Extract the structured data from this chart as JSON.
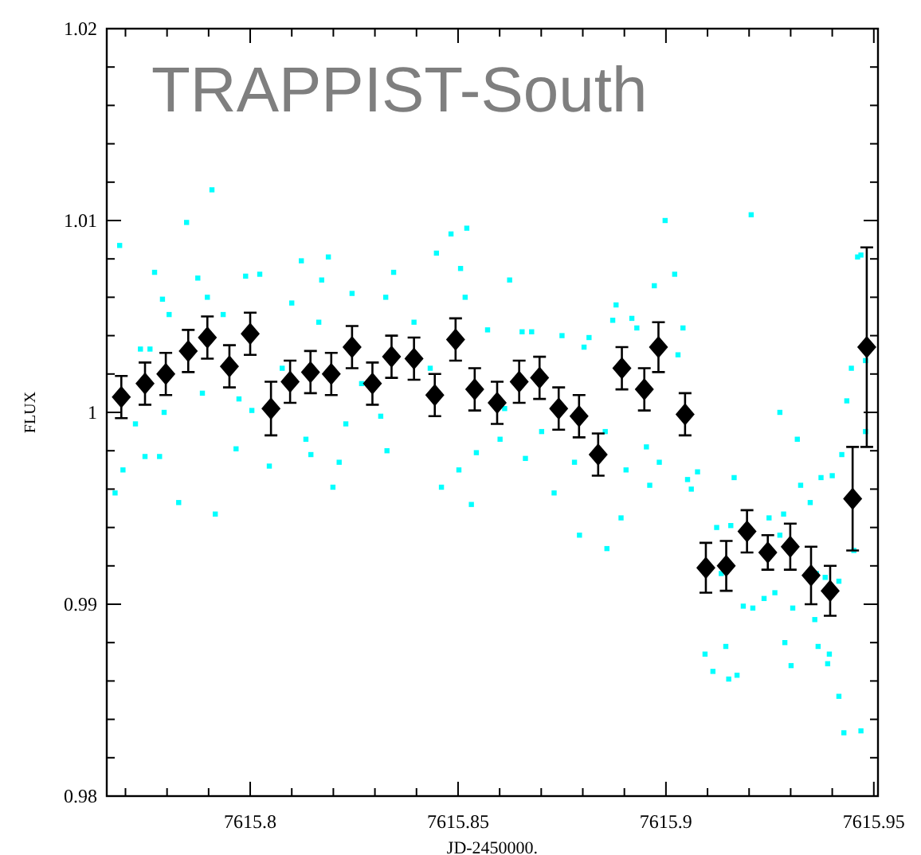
{
  "chart_data": {
    "type": "scatter",
    "title": "TRAPPIST-South",
    "xlabel": "JD-2450000.",
    "ylabel": "FLUX",
    "xlim": [
      7615.7655,
      7615.951
    ],
    "ylim": [
      0.98,
      1.02
    ],
    "xticks": [
      {
        "value": 7615.77,
        "label": null
      },
      {
        "value": 7615.78,
        "label": null
      },
      {
        "value": 7615.79,
        "label": null
      },
      7615.8,
      {
        "value": 7615.81,
        "label": null
      },
      {
        "value": 7615.82,
        "label": null
      },
      {
        "value": 7615.83,
        "label": null
      },
      {
        "value": 7615.84,
        "label": null
      },
      7615.85,
      {
        "value": 7615.86,
        "label": null
      },
      {
        "value": 7615.87,
        "label": null
      },
      {
        "value": 7615.88,
        "label": null
      },
      {
        "value": 7615.89,
        "label": null
      },
      7615.9,
      {
        "value": 7615.91,
        "label": null
      },
      {
        "value": 7615.92,
        "label": null
      },
      {
        "value": 7615.93,
        "label": null
      },
      {
        "value": 7615.94,
        "label": null
      },
      7615.95
    ],
    "yticks": [
      0.98,
      {
        "value": 0.982,
        "label": null
      },
      {
        "value": 0.984,
        "label": null
      },
      {
        "value": 0.986,
        "label": null
      },
      {
        "value": 0.988,
        "label": null
      },
      0.99,
      {
        "value": 0.992,
        "label": null
      },
      {
        "value": 0.994,
        "label": null
      },
      {
        "value": 0.996,
        "label": null
      },
      {
        "value": 0.998,
        "label": null
      },
      1,
      {
        "value": 1.002,
        "label": null
      },
      {
        "value": 1.004,
        "label": null
      },
      {
        "value": 1.006,
        "label": null
      },
      {
        "value": 1.008,
        "label": null
      },
      1.01,
      {
        "value": 1.012,
        "label": null
      },
      {
        "value": 1.014,
        "label": null
      },
      {
        "value": 1.016,
        "label": null
      },
      {
        "value": 1.018,
        "label": null
      },
      1.02
    ],
    "series": [
      {
        "marker": "square",
        "color": "#00ffff",
        "x": [
          7615.7686,
          7615.7675,
          7615.7694,
          7615.777,
          7615.7736,
          7615.7759,
          7615.7747,
          7615.7782,
          7615.7789,
          7615.7805,
          7615.7828,
          7615.7847,
          7615.7874,
          7615.7897,
          7615.7908,
          7615.7916,
          7615.7935,
          7615.7966,
          7615.7989,
          7615.8023,
          7615.8004,
          7615.8046,
          7615.81,
          7615.8123,
          7615.8134,
          7615.8146,
          7615.8172,
          7615.8188,
          7615.8199,
          7615.8214,
          7615.8245,
          7615.8326,
          7615.8345,
          7615.8329,
          7615.8314,
          7615.8448,
          7615.8483,
          7615.8521,
          7615.8506,
          7615.8517,
          7615.846,
          7615.8502,
          7615.8532,
          7615.8544,
          7615.8571,
          7615.8601,
          7615.7724,
          7615.7793,
          7615.7885,
          7615.7973,
          7615.8077,
          7615.8165,
          7615.823,
          7615.8268,
          7615.8394,
          7615.8433,
          7615.8624,
          7615.8654,
          7615.8677,
          7615.875,
          7615.8815,
          7615.8803,
          7615.8662,
          7615.8731,
          7615.878,
          7615.8792,
          7615.888,
          7615.8872,
          7615.8918,
          7615.893,
          7615.8972,
          7615.8998,
          7615.9021,
          7615.9041,
          7615.9029,
          7615.9205,
          7615.9274,
          7615.9316,
          7615.9324,
          7615.9347,
          7615.9373,
          7615.94,
          7615.9423,
          7615.9435,
          7615.9446,
          7615.9461,
          7615.9469,
          7615.948,
          7615.948,
          7615.8892,
          7615.8953,
          7615.8984,
          7615.8961,
          7615.9052,
          7615.9061,
          7615.9076,
          7615.9164,
          7615.8904,
          7615.8854,
          7615.8612,
          7615.8701,
          7615.8858,
          7615.9094,
          7615.9113,
          7615.9144,
          7615.9151,
          7615.9171,
          7615.9186,
          7615.9209,
          7615.9236,
          7615.9262,
          7615.9286,
          7615.9301,
          7615.9305,
          7615.9358,
          7615.9366,
          7615.9389,
          7615.9393,
          7615.9416,
          7615.9428,
          7615.9469,
          7615.9452,
          7615.9122,
          7615.9133,
          7615.9156,
          7615.9248,
          7615.9283,
          7615.9274,
          7615.9362,
          7615.9383,
          7615.9416
        ],
        "values": [
          1.0087,
          0.9958,
          0.997,
          1.0073,
          1.0033,
          1.0033,
          0.9977,
          0.9977,
          1.0059,
          1.0051,
          0.9953,
          1.0099,
          1.007,
          1.006,
          1.0116,
          0.9947,
          1.0051,
          0.9981,
          1.0071,
          1.0072,
          1.0001,
          0.9972,
          1.0057,
          1.0079,
          0.9986,
          0.9978,
          1.0069,
          1.0081,
          0.9961,
          0.9974,
          1.0062,
          1.006,
          1.0073,
          0.998,
          0.9998,
          1.0083,
          1.0093,
          1.0096,
          1.0075,
          1.006,
          0.9961,
          0.997,
          0.9952,
          0.9979,
          1.0043,
          0.9986,
          0.9994,
          1,
          1.001,
          1.0007,
          1.0023,
          1.0047,
          0.9994,
          1.0015,
          1.0047,
          1.0023,
          1.0069,
          1.0042,
          1.0042,
          1.004,
          1.0039,
          1.0034,
          0.9976,
          0.9958,
          0.9974,
          0.9936,
          1.0056,
          1.0048,
          1.0049,
          1.0044,
          1.0066,
          1.01,
          1.0072,
          1.0044,
          1.003,
          1.0103,
          1,
          0.9986,
          0.9962,
          0.9953,
          0.9966,
          0.9967,
          0.9978,
          1.0006,
          1.0023,
          1.0081,
          1.0082,
          1.0027,
          0.999,
          0.9945,
          0.9982,
          0.9974,
          0.9962,
          0.9965,
          0.996,
          0.9969,
          0.9966,
          0.997,
          0.999,
          1.0002,
          0.999,
          0.9929,
          0.9874,
          0.9865,
          0.9878,
          0.9861,
          0.9863,
          0.9899,
          0.9898,
          0.9903,
          0.9906,
          0.988,
          0.9868,
          0.9898,
          0.9892,
          0.9878,
          0.9869,
          0.9874,
          0.9852,
          0.9833,
          0.9834,
          0.9928,
          0.994,
          0.9916,
          0.9941,
          0.9945,
          0.9947,
          0.9936,
          0.9916,
          0.9914,
          0.9912
        ]
      },
      {
        "marker": "diamond",
        "color": "#000000",
        "x": [
          7615.769,
          7615.7747,
          7615.7797,
          7615.7851,
          7615.7897,
          7615.795,
          7615.8,
          7615.805,
          7615.8096,
          7615.8145,
          7615.8195,
          7615.8245,
          7615.8294,
          7615.834,
          7615.8394,
          7615.8444,
          7615.8494,
          7615.854,
          7615.8594,
          7615.8647,
          7615.8696,
          7615.8742,
          7615.8791,
          7615.8837,
          7615.8894,
          7615.8948,
          7615.8982,
          7615.9046,
          7615.9096,
          7615.9145,
          7615.9195,
          7615.9245,
          7615.9299,
          7615.9349,
          7615.9395,
          7615.9449,
          7615.9483
        ],
        "values": [
          1.0008,
          1.0015,
          1.002,
          1.0032,
          1.0039,
          1.0024,
          1.0041,
          1.0002,
          1.0016,
          1.0021,
          1.002,
          1.0034,
          1.0015,
          1.0029,
          1.0028,
          1.0009,
          1.0038,
          1.0012,
          1.0005,
          1.0016,
          1.0018,
          1.0002,
          0.9998,
          0.9978,
          1.0023,
          1.0012,
          1.0034,
          0.9999,
          0.9919,
          0.992,
          0.9938,
          0.9927,
          0.993,
          0.9915,
          0.9907,
          0.9955,
          1.0034
        ],
        "errors": [
          0.0011,
          0.0011,
          0.0011,
          0.0011,
          0.0011,
          0.0011,
          0.0011,
          0.0014,
          0.0011,
          0.0011,
          0.0011,
          0.0011,
          0.0011,
          0.0011,
          0.0011,
          0.0011,
          0.0011,
          0.0011,
          0.0011,
          0.0011,
          0.0011,
          0.0011,
          0.0011,
          0.0011,
          0.0011,
          0.0011,
          0.0013,
          0.0011,
          0.0013,
          0.0013,
          0.0011,
          0.0009,
          0.0012,
          0.0015,
          0.0013,
          0.0027,
          0.0052
        ]
      }
    ]
  }
}
